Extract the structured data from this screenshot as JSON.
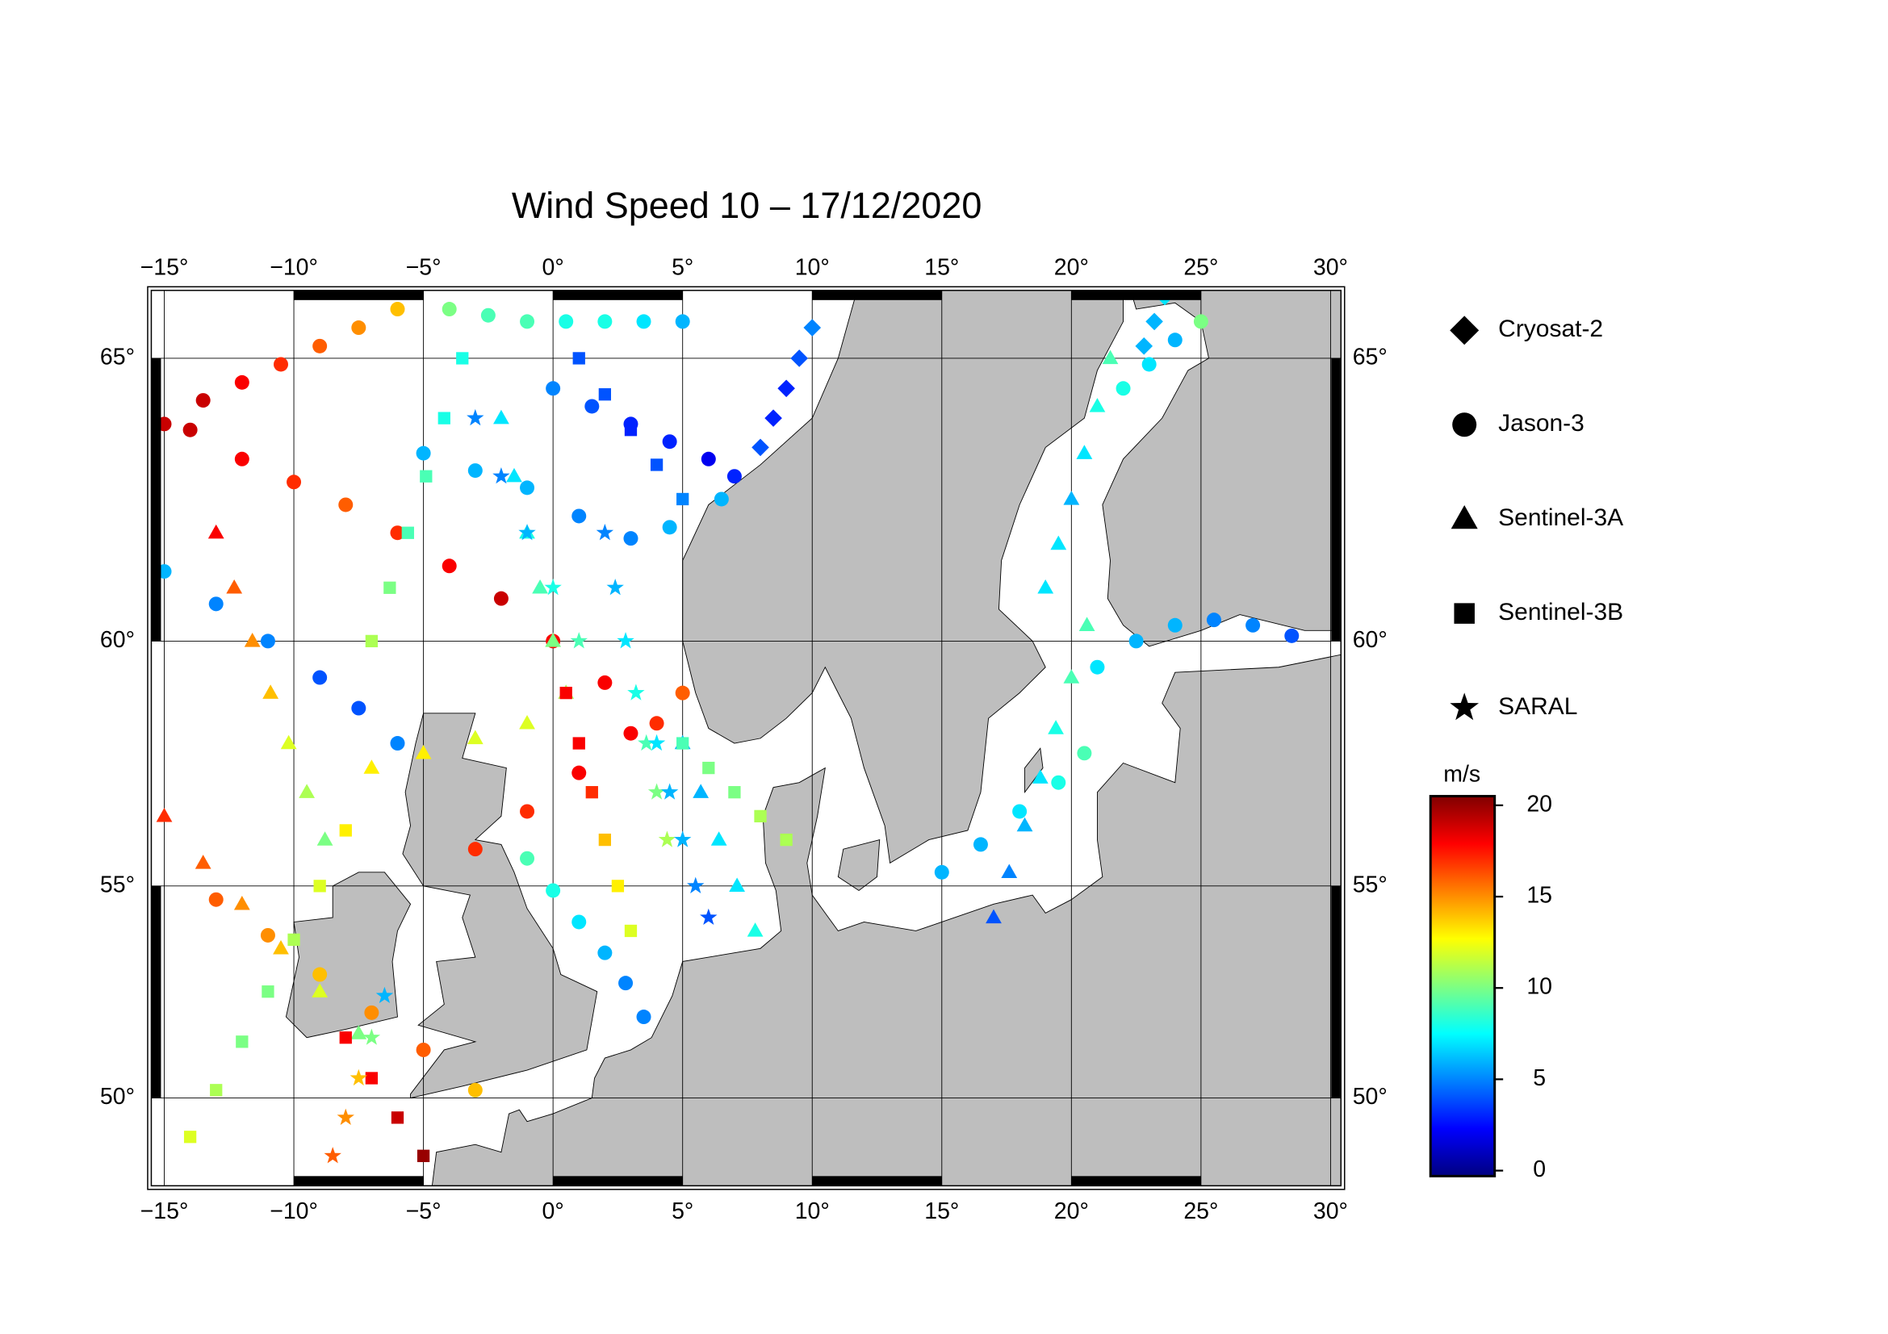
{
  "title": "Wind Speed 10 – 17/12/2020",
  "map": {
    "xlim": [
      -15.5,
      30.4
    ],
    "ylim": [
      47.7,
      66.1
    ],
    "xticks": [
      {
        "value": -15,
        "label": "−15°"
      },
      {
        "value": -10,
        "label": "−10°"
      },
      {
        "value": -5,
        "label": "−5°"
      },
      {
        "value": 0,
        "label": "0°"
      },
      {
        "value": 5,
        "label": "5°"
      },
      {
        "value": 10,
        "label": "10°"
      },
      {
        "value": 15,
        "label": "15°"
      },
      {
        "value": 20,
        "label": "20°"
      },
      {
        "value": 25,
        "label": "25°"
      },
      {
        "value": 30,
        "label": "30°"
      }
    ],
    "yticks": [
      {
        "value": 50,
        "label": "50°"
      },
      {
        "value": 55,
        "label": "55°"
      },
      {
        "value": 60,
        "label": "60°"
      },
      {
        "value": 65,
        "label": "65°"
      }
    ],
    "grid": true
  },
  "colorbar": {
    "unit": "m/s",
    "lim": [
      -0.3,
      20.5
    ],
    "ticks": [
      0,
      5,
      10,
      15,
      20
    ],
    "colormap": "jet"
  },
  "series": [
    {
      "name": "Cryosat-2",
      "marker": "diamond",
      "tracks": [
        {
          "lon": [
            8,
            8.5,
            9,
            9.5,
            10
          ],
          "lat": [
            63.5,
            64,
            64.5,
            65,
            65.5
          ],
          "values": [
            4,
            3,
            3,
            4,
            5
          ]
        },
        {
          "lon": [
            22.8,
            23.2,
            23.6
          ],
          "lat": [
            65.2,
            65.6,
            66
          ],
          "values": [
            6,
            6,
            7
          ]
        }
      ]
    },
    {
      "name": "Jason-3",
      "marker": "circle",
      "tracks": [
        {
          "lon": [
            -15,
            -13.5,
            -12,
            -10.5,
            -9,
            -7.5,
            -6
          ],
          "lat": [
            63.9,
            64.3,
            64.6,
            64.9,
            65.2,
            65.5,
            65.8
          ],
          "values": [
            19,
            19,
            18,
            17,
            16,
            15,
            14
          ]
        },
        {
          "lon": [
            -14,
            -12,
            -10,
            -8,
            -6,
            -4,
            -2,
            0,
            2,
            4
          ],
          "lat": [
            63.8,
            63.3,
            62.9,
            62.5,
            62,
            61.4,
            60.8,
            60,
            59.2,
            58.4
          ],
          "values": [
            19,
            18,
            17,
            16,
            17,
            18,
            19,
            18,
            18,
            17
          ]
        },
        {
          "lon": [
            -15,
            -13,
            -11,
            -9,
            -7.5,
            -6
          ],
          "lat": [
            61.3,
            60.7,
            60,
            59.3,
            58.7,
            58
          ],
          "values": [
            6,
            5,
            5,
            4,
            4,
            5
          ]
        },
        {
          "lon": [
            -5,
            -3,
            -1,
            1,
            3,
            4.5,
            6.5
          ],
          "lat": [
            63.4,
            63.1,
            62.8,
            62.3,
            61.9,
            62.1,
            62.6
          ],
          "values": [
            6,
            6,
            6,
            5,
            5,
            6,
            6
          ]
        },
        {
          "lon": [
            0,
            1.5,
            3,
            4.5,
            6,
            7
          ],
          "lat": [
            64.5,
            64.2,
            63.9,
            63.6,
            63.3,
            63
          ],
          "values": [
            5,
            4,
            3,
            3,
            2,
            3
          ]
        },
        {
          "lon": [
            -4,
            -2.5,
            -1,
            0.5,
            2,
            3.5,
            5
          ],
          "lat": [
            65.8,
            65.7,
            65.6,
            65.6,
            65.6,
            65.6,
            65.6
          ],
          "values": [
            10,
            9,
            9,
            8,
            8,
            7,
            6
          ]
        },
        {
          "lon": [
            -1,
            0,
            1,
            2,
            2.8,
            3.5
          ],
          "lat": [
            55.6,
            54.9,
            54.2,
            53.5,
            52.8,
            52
          ],
          "values": [
            9,
            8,
            7,
            6,
            5,
            5
          ]
        },
        {
          "lon": [
            -13,
            -11,
            -9,
            -7,
            -5,
            -3
          ],
          "lat": [
            54.7,
            53.9,
            53,
            52.1,
            51.2,
            50.2
          ],
          "values": [
            16,
            15,
            14,
            15,
            16,
            14
          ]
        },
        {
          "lon": [
            -3,
            -1,
            1,
            3,
            5
          ],
          "lat": [
            55.8,
            56.6,
            57.4,
            58.2,
            59
          ],
          "values": [
            17,
            17,
            18,
            18,
            16
          ]
        },
        {
          "lon": [
            21,
            22.5,
            24,
            25.5,
            27,
            28.5
          ],
          "lat": [
            59.5,
            60,
            60.3,
            60.4,
            60.3,
            60.1
          ],
          "values": [
            7,
            6,
            6,
            5,
            5,
            4
          ]
        },
        {
          "lon": [
            15,
            16.5,
            18,
            19.5,
            20.5
          ],
          "lat": [
            55.3,
            55.9,
            56.6,
            57.2,
            57.8
          ],
          "values": [
            6,
            6,
            7,
            8,
            9
          ]
        },
        {
          "lon": [
            22,
            23,
            24,
            25
          ],
          "lat": [
            64.5,
            64.9,
            65.3,
            65.6
          ],
          "values": [
            8,
            7,
            6,
            10
          ]
        }
      ]
    },
    {
      "name": "Sentinel-3A",
      "marker": "triangle",
      "tracks": [
        {
          "lon": [
            -15,
            -13.5,
            -12,
            -10.5,
            -9,
            -7.5
          ],
          "lat": [
            56.5,
            55.5,
            54.6,
            53.6,
            52.6,
            51.6
          ],
          "values": [
            17,
            16,
            15,
            14,
            12,
            10
          ]
        },
        {
          "lon": [
            -13,
            -12.3,
            -11.6,
            -10.9,
            -10.2,
            -9.5,
            -8.8
          ],
          "lat": [
            62,
            61,
            60,
            59,
            58,
            57,
            56
          ],
          "values": [
            18,
            16,
            15,
            14,
            12,
            11,
            10
          ]
        },
        {
          "lon": [
            -2,
            -1.5,
            -1,
            -0.5,
            0,
            0.5
          ],
          "lat": [
            64,
            63,
            62,
            61,
            60,
            59
          ],
          "values": [
            7,
            7,
            8,
            9,
            10,
            11
          ]
        },
        {
          "lon": [
            17,
            17.6,
            18.2,
            18.8,
            19.4,
            20,
            20.6
          ],
          "lat": [
            54.3,
            55.3,
            56.3,
            57.3,
            58.3,
            59.3,
            60.3
          ],
          "values": [
            4,
            5,
            6,
            7,
            8,
            9,
            9
          ]
        },
        {
          "lon": [
            19,
            19.5,
            20,
            20.5,
            21,
            21.5
          ],
          "lat": [
            61,
            61.8,
            62.6,
            63.4,
            64.2,
            65
          ],
          "values": [
            7,
            7,
            6,
            7,
            8,
            9
          ]
        },
        {
          "lon": [
            5,
            5.7,
            6.4,
            7.1,
            7.8
          ],
          "lat": [
            58,
            57,
            56,
            55,
            54
          ],
          "values": [
            6,
            6,
            7,
            7,
            8
          ]
        },
        {
          "lon": [
            -7,
            -5,
            -3,
            -1
          ],
          "lat": [
            57.5,
            57.8,
            58.1,
            58.4
          ],
          "values": [
            13,
            13,
            12,
            12
          ]
        }
      ]
    },
    {
      "name": "Sentinel-3B",
      "marker": "square",
      "tracks": [
        {
          "lon": [
            -14,
            -13,
            -12,
            -11,
            -10,
            -9,
            -8
          ],
          "lat": [
            49,
            50.2,
            51.4,
            52.6,
            53.8,
            55,
            56.2
          ],
          "values": [
            12,
            11,
            10,
            10,
            11,
            12,
            13
          ]
        },
        {
          "lon": [
            -7,
            -6.3,
            -5.6,
            -4.9,
            -4.2,
            -3.5
          ],
          "lat": [
            60,
            61,
            62,
            63,
            64,
            65
          ],
          "values": [
            11,
            10,
            9,
            9,
            8,
            8
          ]
        },
        {
          "lon": [
            0.5,
            1,
            1.5,
            2,
            2.5,
            3
          ],
          "lat": [
            59,
            58,
            57,
            56,
            55,
            54
          ],
          "values": [
            18,
            18,
            17,
            14,
            13,
            12
          ]
        },
        {
          "lon": [
            5,
            6,
            7,
            8,
            9
          ],
          "lat": [
            58,
            57.5,
            57,
            56.5,
            56
          ],
          "values": [
            9,
            10,
            10,
            11,
            11
          ]
        },
        {
          "lon": [
            1,
            2,
            3,
            4,
            5
          ],
          "lat": [
            65,
            64.4,
            63.8,
            63.2,
            62.6
          ],
          "values": [
            4,
            4,
            3,
            4,
            5
          ]
        },
        {
          "lon": [
            -5,
            -6,
            -7,
            -8
          ],
          "lat": [
            48.5,
            49.5,
            50.5,
            51.5
          ],
          "values": [
            20,
            19,
            18,
            18
          ]
        }
      ]
    },
    {
      "name": "SARAL",
      "marker": "star",
      "tracks": [
        {
          "lon": [
            2,
            2.4,
            2.8,
            3.2,
            3.6,
            4,
            4.4
          ],
          "lat": [
            62,
            61,
            60,
            59,
            58,
            57,
            56
          ],
          "values": [
            5,
            6,
            7,
            8,
            9,
            10,
            11
          ]
        },
        {
          "lon": [
            -8.5,
            -8,
            -7.5,
            -7,
            -6.5
          ],
          "lat": [
            48.5,
            49.5,
            50.5,
            51.5,
            52.5
          ],
          "values": [
            16,
            15,
            14,
            10,
            6
          ]
        },
        {
          "lon": [
            -3,
            -2,
            -1,
            0,
            1
          ],
          "lat": [
            64,
            63,
            62,
            61,
            60
          ],
          "values": [
            5,
            5,
            6,
            8,
            9
          ]
        },
        {
          "lon": [
            4,
            4.5,
            5,
            5.5,
            6
          ],
          "lat": [
            58,
            57,
            56,
            55,
            54.3
          ],
          "values": [
            7,
            6,
            6,
            5,
            4
          ]
        }
      ]
    }
  ]
}
